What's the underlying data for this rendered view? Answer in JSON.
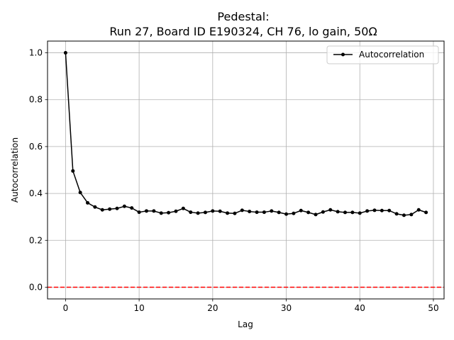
{
  "chart_data": {
    "type": "line",
    "title_line1": "Pedestal:",
    "title_line2": "Run 27, Board ID E190324, CH 76, lo gain, 50Ω",
    "xlabel": "Lag",
    "ylabel": "Autocorrelation",
    "xlim": [
      -2.45,
      51.45
    ],
    "ylim": [
      -0.05,
      1.05
    ],
    "xticks": [
      0,
      10,
      20,
      30,
      40,
      50
    ],
    "yticks": [
      0.0,
      0.2,
      0.4,
      0.6,
      0.8,
      1.0
    ],
    "xtick_labels": [
      "0",
      "10",
      "20",
      "30",
      "40",
      "50"
    ],
    "ytick_labels": [
      "0.0",
      "0.2",
      "0.4",
      "0.6",
      "0.8",
      "1.0"
    ],
    "grid": true,
    "legend_position": "upper right",
    "reference_line": {
      "y": 0.0,
      "color": "#ff0000",
      "style": "dashed"
    },
    "series": [
      {
        "name": "Autocorrelation",
        "color": "#000000",
        "marker": "circle",
        "x": [
          0,
          1,
          2,
          3,
          4,
          5,
          6,
          7,
          8,
          9,
          10,
          11,
          12,
          13,
          14,
          15,
          16,
          17,
          18,
          19,
          20,
          21,
          22,
          23,
          24,
          25,
          26,
          27,
          28,
          29,
          30,
          31,
          32,
          33,
          34,
          35,
          36,
          37,
          38,
          39,
          40,
          41,
          42,
          43,
          44,
          45,
          46,
          47,
          48,
          49
        ],
        "values": [
          1.0,
          0.496,
          0.404,
          0.36,
          0.342,
          0.33,
          0.333,
          0.336,
          0.345,
          0.338,
          0.32,
          0.325,
          0.325,
          0.316,
          0.318,
          0.324,
          0.336,
          0.32,
          0.316,
          0.319,
          0.325,
          0.324,
          0.316,
          0.315,
          0.328,
          0.323,
          0.32,
          0.32,
          0.325,
          0.319,
          0.312,
          0.315,
          0.327,
          0.319,
          0.31,
          0.321,
          0.33,
          0.322,
          0.319,
          0.319,
          0.316,
          0.325,
          0.328,
          0.327,
          0.327,
          0.313,
          0.307,
          0.31,
          0.33,
          0.319
        ]
      }
    ]
  }
}
